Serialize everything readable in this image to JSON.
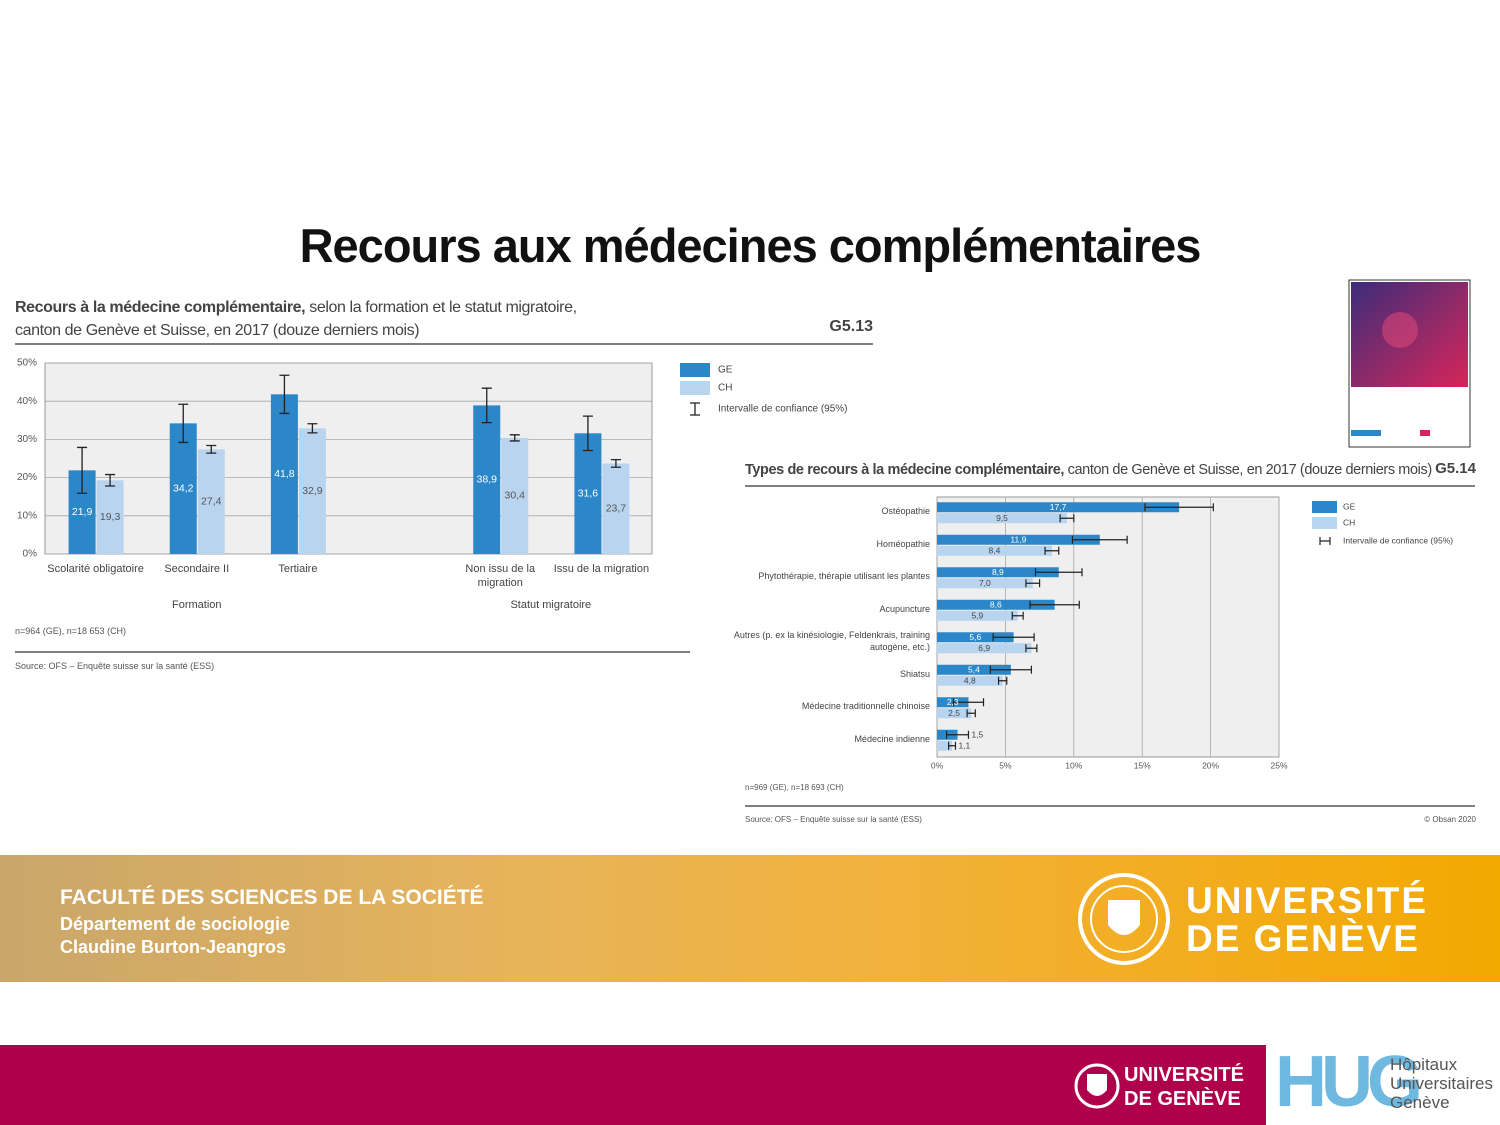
{
  "slide": {
    "title": "Recours aux médecines complémentaires",
    "banner": {
      "faculty": "FACULTÉ DES SCIENCES DE LA SOCIÉTÉ",
      "department": "Département de sociologie",
      "author": "Claudine Burton-Jeangros",
      "logo": [
        "UNIVERSITÉ",
        "DE GENÈVE"
      ]
    },
    "footer": {
      "logo": [
        "UNIVERSITÉ",
        "DE GENÈVE"
      ],
      "hug": "HUG",
      "hug_name": [
        "Hôpitaux",
        "Universitaires",
        "Genève"
      ]
    }
  },
  "chart_data": [
    {
      "type": "bar",
      "title": "Recours à la médecine complémentaire,",
      "subtitle": "selon la formation et le statut migratoire, canton de Genève et Suisse, en 2017 (douze derniers mois)",
      "code": "G5.13",
      "categories": [
        "Scolarité obligatoire",
        "Secondaire II",
        "Tertiaire",
        "Non issu de la migration",
        "Issu de la migration"
      ],
      "groups": [
        "Formation",
        "Statut migratoire"
      ],
      "series": [
        {
          "name": "GE",
          "color": "#2b87c8",
          "values": [
            21.9,
            34.2,
            41.8,
            38.9,
            31.6
          ],
          "value_labels": [
            "21,9",
            "34,2",
            "41,8",
            "38,9",
            "31,6"
          ],
          "errors": [
            6,
            5,
            5,
            4.5,
            4.5
          ]
        },
        {
          "name": "CH",
          "color": "#b9d4ef",
          "values": [
            19.3,
            27.4,
            32.9,
            30.4,
            23.7
          ],
          "value_labels": [
            "19,3",
            "27,4",
            "32,9",
            "30,4",
            "23,7"
          ],
          "errors": [
            1.5,
            1,
            1.2,
            0.8,
            1
          ]
        }
      ],
      "ci_label": "Intervalle de confiance (95%)",
      "ylim": [
        0,
        50
      ],
      "yticks": [
        {
          "value": 0,
          "label": "0%"
        },
        {
          "value": 10,
          "label": "10%"
        },
        {
          "value": 20,
          "label": "20%"
        },
        {
          "value": 30,
          "label": "30%"
        },
        {
          "value": 40,
          "label": "40%"
        },
        {
          "value": 50,
          "label": "50%"
        }
      ],
      "grid": true,
      "note": "n=964 (GE), n=18 653 (CH)",
      "source": "Source: OFS – Enquête suisse sur la santé (ESS)"
    },
    {
      "type": "hbar",
      "title": "Types de recours à la médecine complémentaire,",
      "subtitle": "canton de Genève et Suisse, en 2017 (douze derniers mois)",
      "code": "G5.14",
      "categories": [
        "Ostéopathie",
        "Homéopathie",
        "Phytothérapie, thérapie utilisant les plantes",
        "Acupuncture",
        "Autres (p. ex la kinésiologie, Feldenkrais, training autogène, etc.)",
        "Shiatsu",
        "Médecine traditionnelle chinoise",
        "Médecine indienne"
      ],
      "series": [
        {
          "name": "GE",
          "color": "#2b87c8",
          "values": [
            17.7,
            11.9,
            8.9,
            8.6,
            5.6,
            5.4,
            2.3,
            1.5
          ],
          "value_labels": [
            "17,7",
            "11,9",
            "8,9",
            "8,6",
            "5,6",
            "5,4",
            "2,3",
            "1,5"
          ],
          "errors": [
            2.5,
            2,
            1.7,
            1.8,
            1.5,
            1.5,
            1.1,
            0.8
          ]
        },
        {
          "name": "CH",
          "color": "#b9d4ef",
          "values": [
            9.5,
            8.4,
            7.0,
            5.9,
            6.9,
            4.8,
            2.5,
            1.1
          ],
          "value_labels": [
            "9,5",
            "8,4",
            "7,0",
            "5,9",
            "6,9",
            "4,8",
            "2,5",
            "1,1"
          ],
          "errors": [
            0.5,
            0.5,
            0.5,
            0.4,
            0.4,
            0.3,
            0.3,
            0.25
          ]
        }
      ],
      "ci_label": "Intervalle de confiance (95%)",
      "xlim": [
        0,
        25
      ],
      "xticks": [
        {
          "value": 0,
          "label": "0%"
        },
        {
          "value": 5,
          "label": "5%"
        },
        {
          "value": 10,
          "label": "10%"
        },
        {
          "value": 15,
          "label": "15%"
        },
        {
          "value": 20,
          "label": "20%"
        },
        {
          "value": 25,
          "label": "25%"
        }
      ],
      "grid": true,
      "note": "n=969 (GE), n=18 693 (CH)",
      "source": "Source: OFS – Enquête suisse sur la santé (ESS)",
      "copyright": "© Obsan 2020"
    }
  ]
}
